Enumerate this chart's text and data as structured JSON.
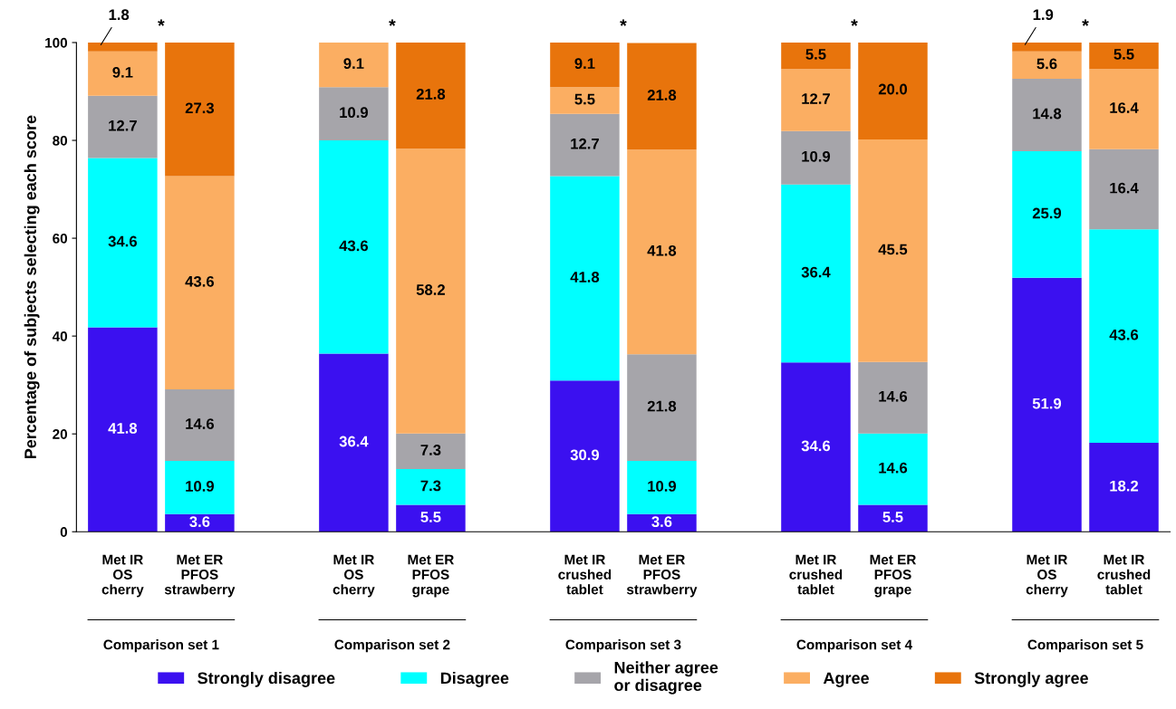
{
  "chart_data": {
    "type": "bar",
    "stacked": true,
    "ylabel": "Percentage of subjects selecting each score",
    "categories": [
      "Met IR\nOS\ncherry",
      "Met ER\nPFOS\nstrawberry",
      null,
      "Met IR\nOS\ncherry",
      "Met ER\nPFOS\ngrape",
      null,
      "Met IR\ncrushed\ntablet",
      "Met ER\nPFOS\nstrawberry",
      null,
      "Met IR\ncrushed\ntablet",
      "Met ER\nPFOS\ngrape",
      null,
      "Met IR\nOS\ncherry",
      "Met IR\ncrushed\ntablet"
    ],
    "series": [
      {
        "name": "Strongly disagree",
        "color": "#3b10f0",
        "values": [
          41.8,
          3.6,
          null,
          36.4,
          5.5,
          null,
          30.9,
          3.6,
          null,
          34.6,
          5.5,
          null,
          51.9,
          18.2
        ],
        "value_labels": [
          "41.8",
          "3.6",
          null,
          "36.4",
          "5.5",
          null,
          "30.9",
          "3.6",
          null,
          "34.6",
          "5.5",
          null,
          "51.9",
          "18.2"
        ]
      },
      {
        "name": "Disagree",
        "color": "#00ffff",
        "values": [
          34.6,
          10.9,
          null,
          43.6,
          7.3,
          null,
          41.8,
          10.9,
          null,
          36.4,
          14.6,
          null,
          25.9,
          43.6
        ],
        "value_labels": [
          "34.6",
          "10.9",
          null,
          "43.6",
          "7.3",
          null,
          "41.8",
          "10.9",
          null,
          "36.4",
          "14.6",
          null,
          "25.9",
          "43.6"
        ]
      },
      {
        "name": "Neither agree\nor disagree",
        "color": "#a6a5aa",
        "values": [
          12.7,
          14.6,
          null,
          10.9,
          7.3,
          null,
          12.7,
          21.8,
          null,
          10.9,
          14.6,
          null,
          14.8,
          16.4
        ],
        "value_labels": [
          "12.7",
          "14.6",
          null,
          "10.9",
          "7.3",
          null,
          "12.7",
          "21.8",
          null,
          "10.9",
          "14.6",
          null,
          "14.8",
          "16.4"
        ]
      },
      {
        "name": "Agree",
        "color": "#fbae62",
        "values": [
          9.1,
          43.6,
          null,
          9.1,
          58.2,
          null,
          5.5,
          41.8,
          null,
          12.7,
          45.5,
          null,
          5.6,
          16.4
        ],
        "value_labels": [
          "9.1",
          "43.6",
          null,
          "9.1",
          "58.2",
          null,
          "5.5",
          "41.8",
          null,
          "12.7",
          "45.5",
          null,
          "5.6",
          "16.4"
        ]
      },
      {
        "name": "Strongly agree",
        "color": "#e8740c",
        "values": [
          1.8,
          27.3,
          null,
          0,
          21.8,
          null,
          9.1,
          21.8,
          null,
          5.5,
          20.0,
          null,
          1.9,
          5.5
        ],
        "value_labels": [
          "1.8",
          "27.3",
          null,
          null,
          "21.8",
          null,
          "9.1",
          "21.8",
          null,
          "5.5",
          "20.0",
          null,
          "1.9",
          "5.5"
        ]
      }
    ],
    "ylim": [
      0,
      100
    ],
    "yticks": [
      0,
      20,
      40,
      60,
      80,
      100
    ],
    "grid": false,
    "legend": "bottom",
    "annotations": [
      "Comparison set 1",
      "Comparison set 2",
      "Comparison set 3",
      "Comparison set 4",
      "Comparison set 5",
      "*",
      "*",
      "*",
      "*",
      "*"
    ]
  }
}
